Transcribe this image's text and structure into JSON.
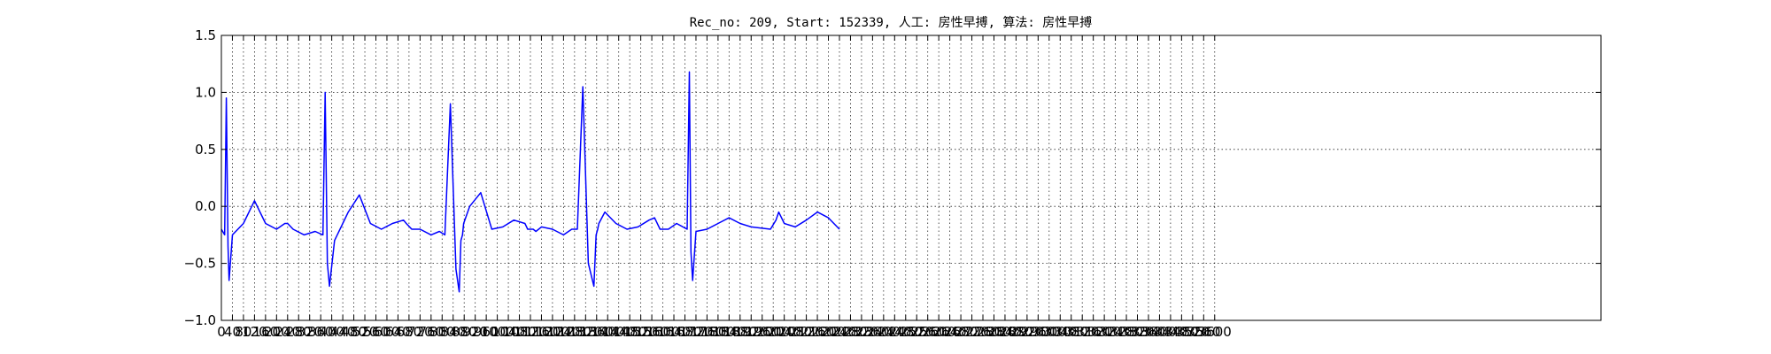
{
  "chart_data": {
    "type": "line",
    "title": "Rec_no: 209, Start: 152339, 人工: 房性早搏, 算法: 房性早搏",
    "xlabel": "",
    "ylabel": "",
    "ylim": [
      -1.0,
      1.5
    ],
    "y_ticks": [
      "1.5",
      "1.0",
      "0.5",
      "0.0",
      "−0.5",
      "−1.0"
    ],
    "xlim": [
      0,
      5000
    ],
    "x_tick_step": 40,
    "x_ticks_last": 3600,
    "grid": true,
    "legend": "none",
    "series": [
      {
        "color": "#0000ff",
        "x": [
          0,
          12,
          18,
          24,
          28,
          40,
          80,
          120,
          160,
          200,
          230,
          240,
          260,
          300,
          340,
          368,
          376,
          384,
          392,
          410,
          440,
          460,
          500,
          540,
          580,
          620,
          660,
          670,
          690,
          700,
          720,
          760,
          790,
          810,
          830,
          850,
          862,
          868,
          874,
          878,
          900,
          940,
          980,
          1020,
          1060,
          1100,
          1110,
          1130,
          1140,
          1160,
          1200,
          1240,
          1270,
          1290,
          1310,
          1330,
          1350,
          1358,
          1364,
          1368,
          1390,
          1430,
          1470,
          1510,
          1550,
          1570,
          1590,
          1620,
          1650,
          1688,
          1696,
          1702,
          1708,
          1720,
          1760,
          1800,
          1840,
          1880,
          1920,
          1990,
          2010,
          2020,
          2040,
          2080,
          2120,
          2160,
          2200,
          2240
        ],
        "y": [
          -0.2,
          -0.25,
          0.95,
          -0.35,
          -0.65,
          -0.25,
          -0.15,
          0.05,
          -0.15,
          -0.2,
          -0.15,
          -0.15,
          -0.2,
          -0.25,
          -0.22,
          -0.25,
          1.0,
          -0.5,
          -0.7,
          -0.3,
          -0.15,
          -0.05,
          0.1,
          -0.15,
          -0.2,
          -0.15,
          -0.12,
          -0.15,
          -0.2,
          -0.2,
          -0.2,
          -0.25,
          -0.22,
          -0.25,
          0.9,
          -0.55,
          -0.75,
          -0.3,
          -0.25,
          -0.15,
          0.0,
          0.12,
          -0.2,
          -0.18,
          -0.12,
          -0.15,
          -0.2,
          -0.2,
          -0.22,
          -0.18,
          -0.2,
          -0.25,
          -0.2,
          -0.2,
          1.05,
          -0.5,
          -0.7,
          -0.25,
          -0.2,
          -0.15,
          -0.05,
          -0.15,
          -0.2,
          -0.18,
          -0.12,
          -0.1,
          -0.2,
          -0.2,
          -0.15,
          -0.2,
          1.18,
          -0.4,
          -0.65,
          -0.22,
          -0.2,
          -0.15,
          -0.1,
          -0.15,
          -0.18,
          -0.2,
          -0.12,
          -0.05,
          -0.15,
          -0.18,
          -0.12,
          -0.05,
          -0.1,
          -0.2
        ]
      }
    ]
  }
}
